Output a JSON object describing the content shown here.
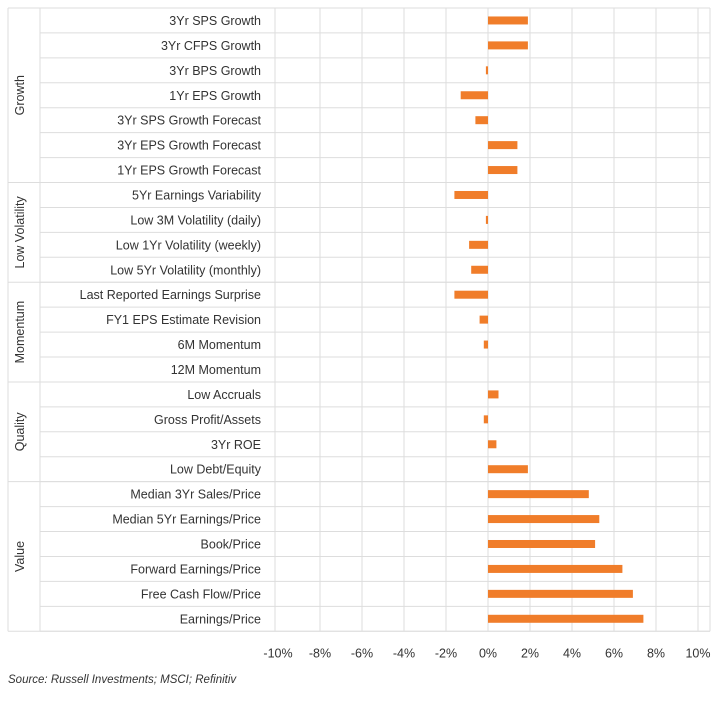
{
  "chart_data": {
    "type": "bar",
    "orientation": "horizontal",
    "groups": [
      {
        "name": "Growth",
        "categories": [
          "3Yr SPS Growth",
          "3Yr CFPS Growth",
          "3Yr BPS Growth",
          "1Yr EPS Growth",
          "3Yr SPS Growth Forecast",
          "3Yr EPS Growth Forecast",
          "1Yr EPS Growth Forecast"
        ],
        "values": [
          1.9,
          1.9,
          -0.1,
          -1.3,
          -0.6,
          1.4,
          1.4
        ]
      },
      {
        "name": "Low Volatility",
        "categories": [
          "5Yr Earnings Variability",
          "Low 3M Volatility (daily)",
          "Low 1Yr Volatility (weekly)",
          "Low 5Yr Volatility (monthly)"
        ],
        "values": [
          -1.6,
          -0.1,
          -0.9,
          -0.8
        ]
      },
      {
        "name": "Momentum",
        "categories": [
          "Last Reported Earnings Surprise",
          "FY1 EPS Estimate Revision",
          "6M Momentum",
          "12M Momentum"
        ],
        "values": [
          -1.6,
          -0.4,
          -0.2,
          0.0
        ]
      },
      {
        "name": "Quality",
        "categories": [
          "Low Accruals",
          "Gross Profit/Assets",
          "3Yr ROE",
          "Low Debt/Equity"
        ],
        "values": [
          0.5,
          -0.2,
          0.4,
          1.9
        ]
      },
      {
        "name": "Value",
        "categories": [
          "Median 3Yr Sales/Price",
          "Median 5Yr Earnings/Price",
          "Book/Price",
          "Forward Earnings/Price",
          "Free Cash Flow/Price",
          "Earnings/Price"
        ],
        "values": [
          4.8,
          5.3,
          5.1,
          6.4,
          6.9,
          7.4
        ]
      }
    ],
    "x_ticks": [
      "-10%",
      "-8%",
      "-6%",
      "-4%",
      "-2%",
      "0%",
      "2%",
      "4%",
      "6%",
      "8%",
      "10%"
    ],
    "xlim": [
      -10,
      10
    ],
    "grid": true,
    "bar_color": "#f07d2a",
    "grid_color": "#dddddd"
  },
  "source": "Source: Russell Investments; MSCI; Refinitiv"
}
